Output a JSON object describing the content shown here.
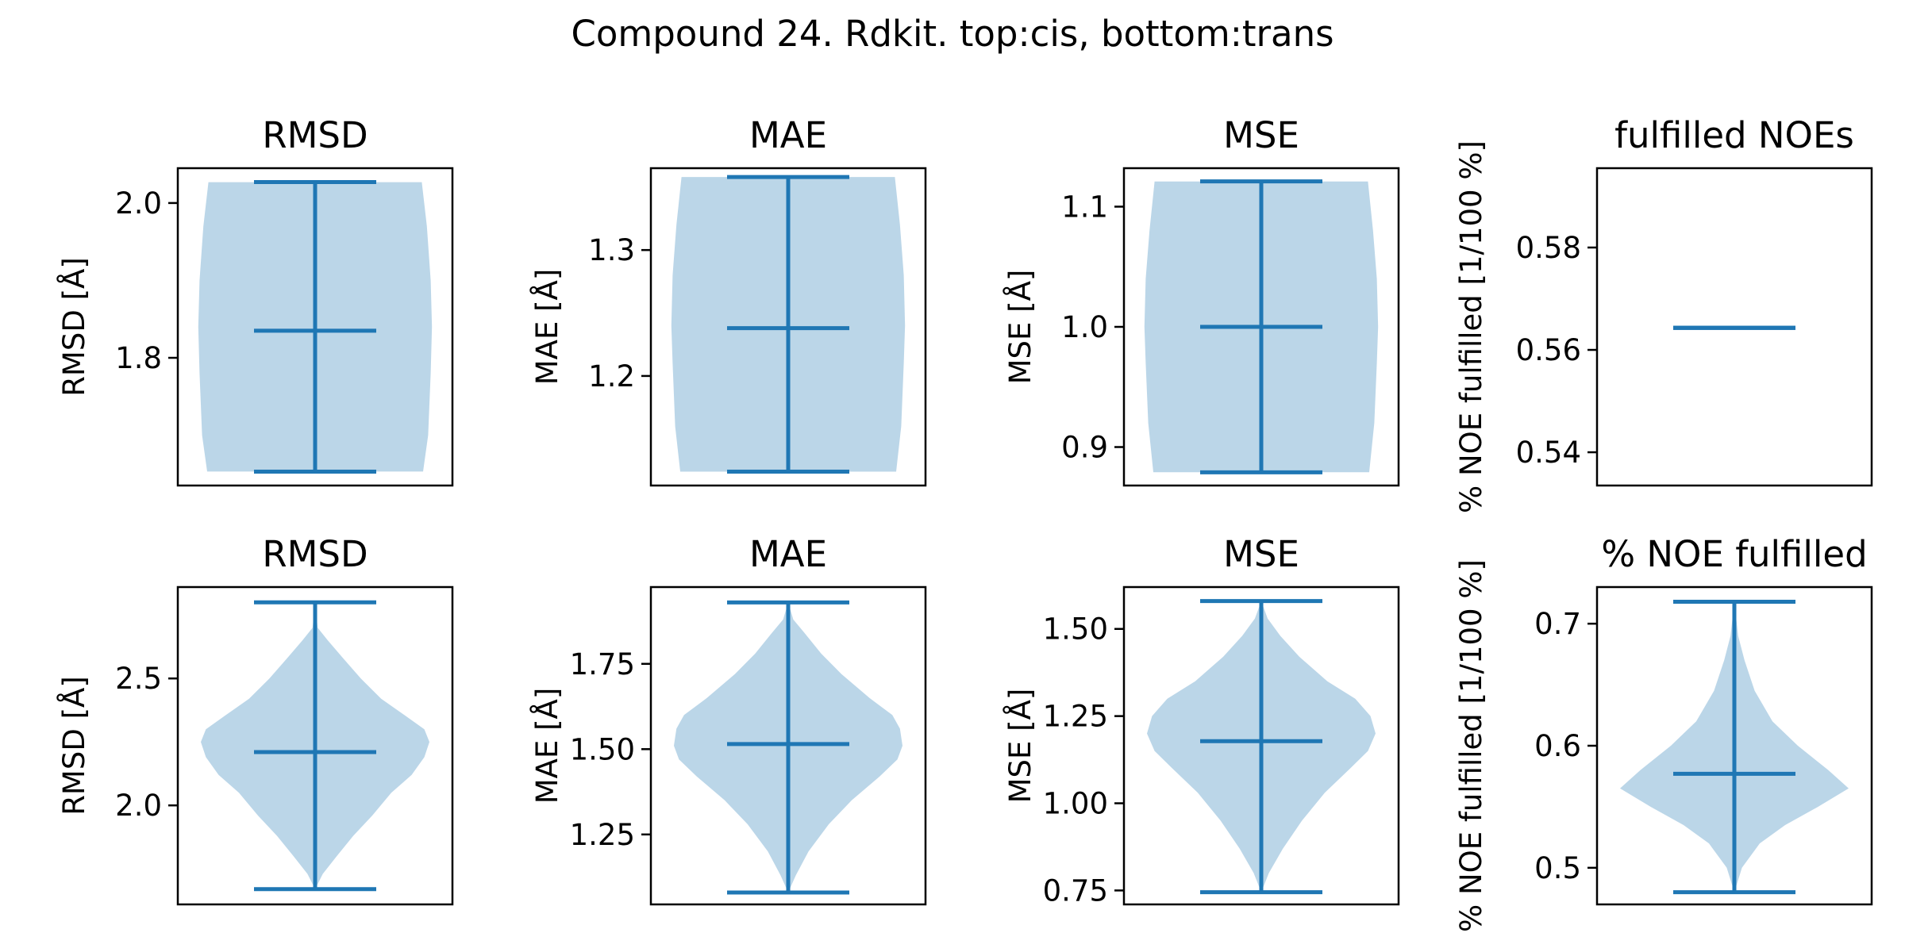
{
  "figure": {
    "title": "Compound 24. Rdkit. top:cis, bottom:trans"
  },
  "colors": {
    "body": "#1f77b4",
    "body_opacity": 0.3,
    "line": "#1f77b4",
    "axes": "#000000",
    "background": "#ffffff"
  },
  "chart_data": [
    {
      "type": "violin",
      "row": "top",
      "title": "RMSD",
      "ylabel": "RMSD [$\\AA$]",
      "ylim": [
        1.635,
        2.045
      ],
      "yticks": [
        1.8,
        2.0
      ],
      "tick_labels": [
        "1.8",
        "2.0"
      ],
      "min": 1.653,
      "max": 2.027,
      "mean": 1.835,
      "shape": [
        [
          1.653,
          0.85
        ],
        [
          1.7,
          0.89
        ],
        [
          1.78,
          0.91
        ],
        [
          1.84,
          0.92
        ],
        [
          1.9,
          0.91
        ],
        [
          1.97,
          0.88
        ],
        [
          2.027,
          0.84
        ]
      ]
    },
    {
      "type": "violin",
      "row": "top",
      "title": "MAE",
      "ylabel": "MAE [$\\AA$]",
      "ylim": [
        1.113,
        1.365
      ],
      "yticks": [
        1.2,
        1.3
      ],
      "tick_labels": [
        "1.2",
        "1.3"
      ],
      "min": 1.124,
      "max": 1.358,
      "mean": 1.238,
      "shape": [
        [
          1.124,
          0.85
        ],
        [
          1.16,
          0.89
        ],
        [
          1.21,
          0.91
        ],
        [
          1.24,
          0.92
        ],
        [
          1.28,
          0.91
        ],
        [
          1.32,
          0.88
        ],
        [
          1.358,
          0.84
        ]
      ]
    },
    {
      "type": "violin",
      "row": "top",
      "title": "MSE",
      "ylabel": "MSE [$\\AA$]",
      "ylim": [
        0.868,
        1.132
      ],
      "yticks": [
        0.9,
        1.0,
        1.1
      ],
      "tick_labels": [
        "0.9",
        "1.0",
        "1.1"
      ],
      "min": 0.879,
      "max": 1.121,
      "mean": 1.0,
      "shape": [
        [
          0.879,
          0.85
        ],
        [
          0.92,
          0.89
        ],
        [
          0.97,
          0.91
        ],
        [
          1.0,
          0.92
        ],
        [
          1.04,
          0.91
        ],
        [
          1.08,
          0.88
        ],
        [
          1.121,
          0.84
        ]
      ]
    },
    {
      "type": "violin",
      "row": "top",
      "title": "fulfilled NOEs",
      "ylabel": "% NOE fulfilled [1/100 %]",
      "ylim": [
        0.5335,
        0.5955
      ],
      "yticks": [
        0.54,
        0.56,
        0.58
      ],
      "tick_labels": [
        "0.54",
        "0.56",
        "0.58"
      ],
      "min": 0.5643,
      "max": 0.5643,
      "mean": 0.5643,
      "shape": []
    },
    {
      "type": "violin",
      "row": "bottom",
      "title": "RMSD",
      "ylabel": "RMSD [$\\AA$]",
      "ylim": [
        1.61,
        2.86
      ],
      "yticks": [
        2.0,
        2.5
      ],
      "tick_labels": [
        "2.0",
        "2.5"
      ],
      "min": 1.67,
      "max": 2.8,
      "mean": 2.21,
      "shape": [
        [
          1.67,
          0.0
        ],
        [
          1.73,
          0.06
        ],
        [
          1.8,
          0.17
        ],
        [
          1.88,
          0.3
        ],
        [
          1.96,
          0.45
        ],
        [
          2.05,
          0.6
        ],
        [
          2.12,
          0.76
        ],
        [
          2.19,
          0.86
        ],
        [
          2.25,
          0.9
        ],
        [
          2.3,
          0.86
        ],
        [
          2.35,
          0.72
        ],
        [
          2.42,
          0.52
        ],
        [
          2.5,
          0.36
        ],
        [
          2.58,
          0.22
        ],
        [
          2.65,
          0.1
        ],
        [
          2.7,
          0.02
        ],
        [
          2.8,
          0.0
        ]
      ]
    },
    {
      "type": "violin",
      "row": "bottom",
      "title": "MAE",
      "ylabel": "MAE [$\\AA$]",
      "ylim": [
        1.045,
        1.975
      ],
      "yticks": [
        1.25,
        1.5,
        1.75
      ],
      "tick_labels": [
        "1.25",
        "1.50",
        "1.75"
      ],
      "min": 1.08,
      "max": 1.93,
      "mean": 1.515,
      "shape": [
        [
          1.08,
          0.0
        ],
        [
          1.13,
          0.06
        ],
        [
          1.2,
          0.16
        ],
        [
          1.28,
          0.32
        ],
        [
          1.35,
          0.5
        ],
        [
          1.42,
          0.72
        ],
        [
          1.47,
          0.86
        ],
        [
          1.51,
          0.9
        ],
        [
          1.56,
          0.88
        ],
        [
          1.6,
          0.82
        ],
        [
          1.65,
          0.64
        ],
        [
          1.72,
          0.42
        ],
        [
          1.78,
          0.26
        ],
        [
          1.84,
          0.13
        ],
        [
          1.88,
          0.04
        ],
        [
          1.93,
          0.0
        ]
      ]
    },
    {
      "type": "violin",
      "row": "bottom",
      "title": "MSE",
      "ylabel": "MSE [$\\AA$]",
      "ylim": [
        0.71,
        1.62
      ],
      "yticks": [
        0.75,
        1.0,
        1.25,
        1.5
      ],
      "tick_labels": [
        "0.75",
        "1.00",
        "1.25",
        "1.50"
      ],
      "min": 0.745,
      "max": 1.58,
      "mean": 1.178,
      "shape": [
        [
          0.745,
          0.0
        ],
        [
          0.8,
          0.06
        ],
        [
          0.87,
          0.17
        ],
        [
          0.95,
          0.32
        ],
        [
          1.03,
          0.5
        ],
        [
          1.1,
          0.7
        ],
        [
          1.15,
          0.84
        ],
        [
          1.2,
          0.9
        ],
        [
          1.25,
          0.86
        ],
        [
          1.3,
          0.74
        ],
        [
          1.35,
          0.52
        ],
        [
          1.42,
          0.3
        ],
        [
          1.48,
          0.15
        ],
        [
          1.53,
          0.05
        ],
        [
          1.58,
          0.0
        ]
      ]
    },
    {
      "type": "violin",
      "row": "bottom",
      "title": "% NOE fulfilled",
      "ylabel": "% NOE fulfilled [1/100 %]",
      "ylim": [
        0.47,
        0.73
      ],
      "yticks": [
        0.5,
        0.6,
        0.7
      ],
      "tick_labels": [
        "0.5",
        "0.6",
        "0.7"
      ],
      "min": 0.48,
      "max": 0.718,
      "mean": 0.577,
      "shape": [
        [
          0.48,
          0.0
        ],
        [
          0.5,
          0.06
        ],
        [
          0.52,
          0.2
        ],
        [
          0.535,
          0.4
        ],
        [
          0.55,
          0.66
        ],
        [
          0.565,
          0.9
        ],
        [
          0.58,
          0.74
        ],
        [
          0.6,
          0.5
        ],
        [
          0.62,
          0.3
        ],
        [
          0.645,
          0.16
        ],
        [
          0.67,
          0.08
        ],
        [
          0.69,
          0.03
        ],
        [
          0.718,
          0.0
        ]
      ]
    }
  ]
}
